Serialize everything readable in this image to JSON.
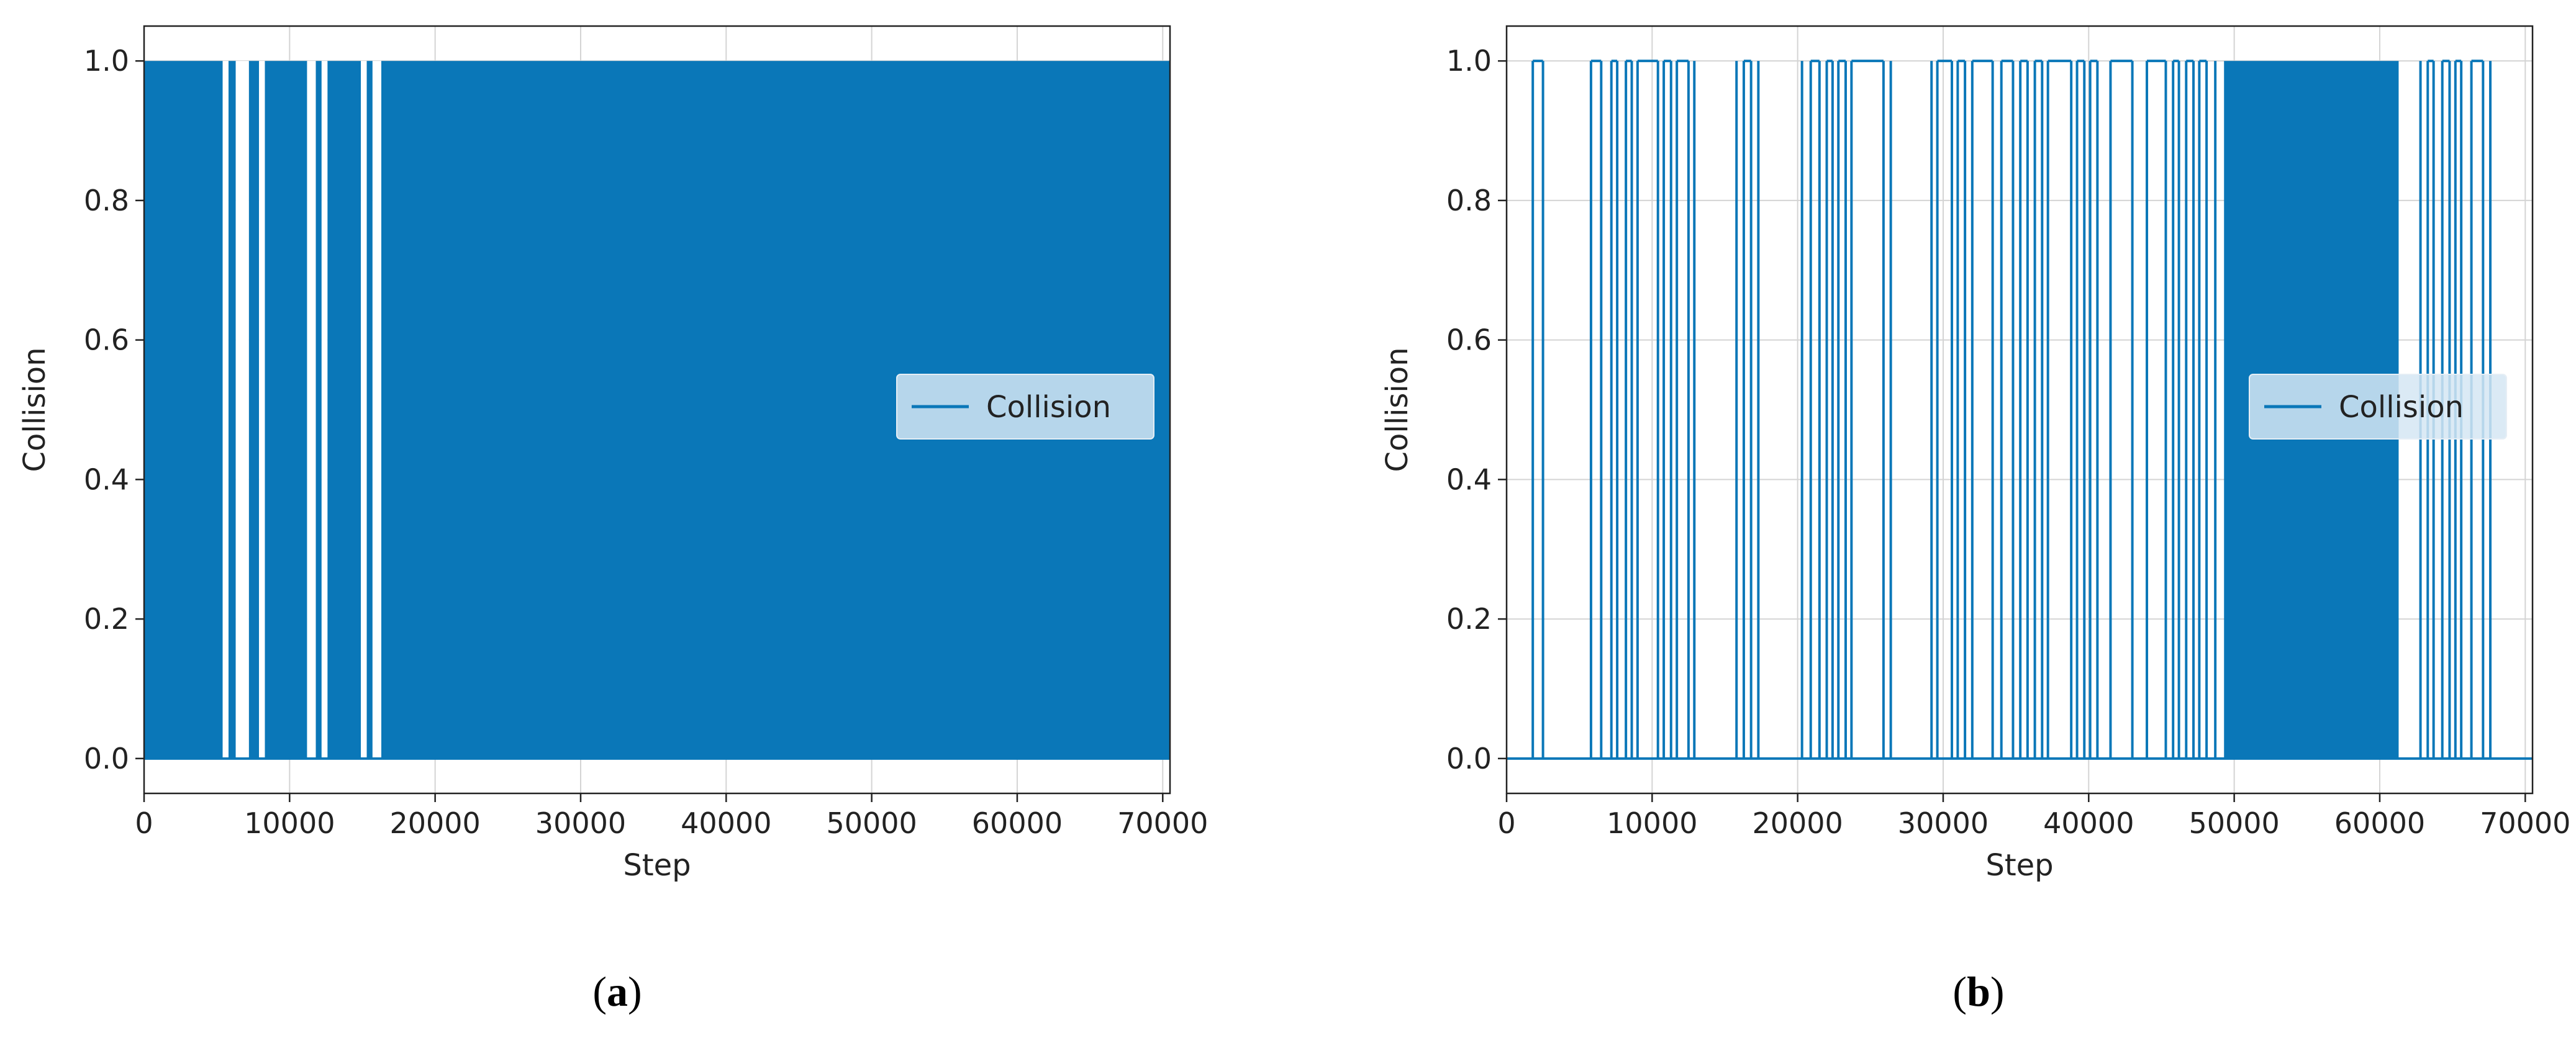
{
  "colors": {
    "series": "#0a77b8",
    "grid": "#d4d4d4",
    "axis": "#222222",
    "legend_bg": "#d5e6f3"
  },
  "chart_data": [
    {
      "type": "line",
      "id": "a",
      "caption": "a",
      "xlabel": "Step",
      "ylabel": "Collision",
      "xlim": [
        0,
        70500
      ],
      "ylim": [
        -0.05,
        1.05
      ],
      "xticks": [
        0,
        10000,
        20000,
        30000,
        40000,
        50000,
        60000,
        70000
      ],
      "xtick_labels": [
        "0",
        "10000",
        "20000",
        "30000",
        "40000",
        "50000",
        "60000",
        "70000"
      ],
      "yticks": [
        0.0,
        0.2,
        0.4,
        0.6,
        0.8,
        1.0
      ],
      "ytick_labels": [
        "0.0",
        "0.2",
        "0.4",
        "0.6",
        "0.8",
        "1.0"
      ],
      "grid": true,
      "legend_position": "center-right",
      "series": [
        {
          "name": "Collision",
          "low_value": 0,
          "high_value": 1,
          "dense_collision_intervals": [
            [
              0,
              5400
            ],
            [
              5800,
              6300
            ],
            [
              7200,
              7900
            ],
            [
              8300,
              11200
            ],
            [
              11800,
              12200
            ],
            [
              12600,
              14900
            ],
            [
              15300,
              15700
            ],
            [
              16300,
              70500
            ]
          ],
          "no_collision_intervals": [
            [
              5400,
              5800
            ],
            [
              6300,
              7200
            ],
            [
              7900,
              8300
            ],
            [
              11200,
              11800
            ],
            [
              12200,
              12600
            ],
            [
              14900,
              15300
            ],
            [
              15700,
              16300
            ]
          ]
        }
      ]
    },
    {
      "type": "line",
      "id": "b",
      "caption": "b",
      "xlabel": "Step",
      "ylabel": "Collision",
      "xlim": [
        0,
        70500
      ],
      "ylim": [
        -0.05,
        1.05
      ],
      "xticks": [
        0,
        10000,
        20000,
        30000,
        40000,
        50000,
        60000,
        70000
      ],
      "xtick_labels": [
        "0",
        "10000",
        "20000",
        "30000",
        "40000",
        "50000",
        "60000",
        "70000"
      ],
      "yticks": [
        0.0,
        0.2,
        0.4,
        0.6,
        0.8,
        1.0
      ],
      "ytick_labels": [
        "0.0",
        "0.2",
        "0.4",
        "0.6",
        "0.8",
        "1.0"
      ],
      "grid": true,
      "legend_position": "center-right",
      "series": [
        {
          "name": "Collision",
          "low_value": 0,
          "high_value": 1,
          "dense_collision_intervals": [
            [
              49300,
              61300
            ]
          ],
          "collision_steps": [
            1800,
            2500,
            5800,
            6500,
            7200,
            7600,
            8200,
            8600,
            9000,
            10400,
            10800,
            11300,
            11700,
            12500,
            12900,
            15800,
            16300,
            16800,
            17300,
            20300,
            20900,
            21500,
            22000,
            22400,
            22800,
            23300,
            23700,
            25900,
            26400,
            29200,
            29600,
            30600,
            31000,
            31500,
            32000,
            33400,
            34000,
            34800,
            35300,
            35800,
            36300,
            36800,
            37200,
            38800,
            39200,
            39700,
            40100,
            40600,
            41500,
            43000,
            44000,
            45300,
            45800,
            46200,
            46700,
            47200,
            47600,
            48100,
            48700,
            62800,
            63300,
            63700,
            64300,
            64800,
            65200,
            65600,
            66300,
            67100,
            67600
          ]
        }
      ]
    }
  ]
}
